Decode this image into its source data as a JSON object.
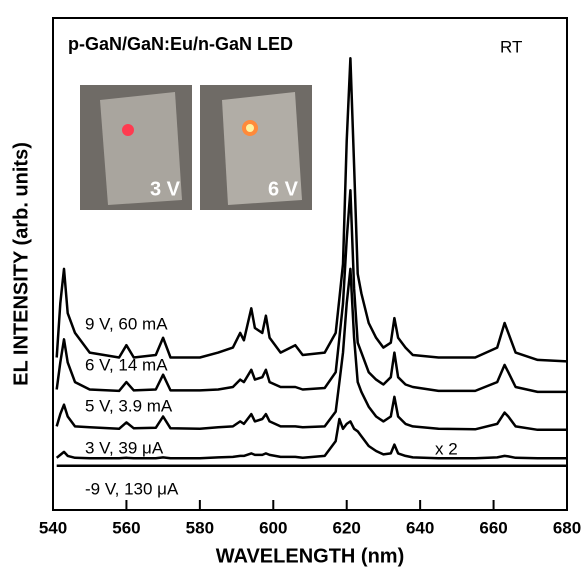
{
  "chart_data": {
    "type": "line",
    "title": "p-GaN/GaN:Eu/n-GaN LED",
    "annotations": [
      "RT",
      "x 2"
    ],
    "inset_labels": [
      "3 V",
      "6 V"
    ],
    "x_label": "WAVELENGTH  (nm)",
    "y_label": "EL INTENSITY  (arb. units)",
    "xlim": [
      540,
      680
    ],
    "xticks": [
      540,
      560,
      580,
      600,
      620,
      640,
      660,
      680
    ],
    "ylim": [
      0,
      100
    ],
    "x": [
      541,
      542,
      543,
      544,
      546,
      550,
      558,
      560,
      562,
      568,
      570,
      572,
      580,
      585,
      589,
      591,
      592,
      594,
      595,
      597,
      598,
      599,
      602,
      606,
      608,
      614,
      617,
      618,
      619,
      620,
      621,
      622,
      623,
      624,
      626,
      628,
      630,
      632,
      633,
      634,
      636,
      638,
      645,
      655,
      661,
      663,
      664,
      666,
      672,
      680
    ],
    "series": [
      {
        "name": "9 V, 60 mA",
        "color": "#000000",
        "values": [
          31,
          42,
          49,
          40,
          36,
          32,
          31,
          33.5,
          31,
          31.5,
          35,
          31,
          31,
          32,
          33,
          36,
          34.5,
          41,
          37,
          36,
          39.5,
          35,
          32,
          33.5,
          31.5,
          32,
          36,
          43,
          50,
          75,
          91.8,
          70,
          48,
          44,
          38,
          35,
          33,
          34,
          39,
          35,
          33,
          31.5,
          31,
          31,
          33,
          38,
          36,
          32,
          30.5,
          30.2
        ]
      },
      {
        "name": "6 V, 14 mA",
        "color": "#000000",
        "values": [
          24.5,
          30,
          34.7,
          30,
          26,
          24.5,
          24.2,
          26,
          24.3,
          24.5,
          27.5,
          24.3,
          24.3,
          24.5,
          25,
          26.5,
          26,
          28.5,
          26.5,
          27,
          28.5,
          26,
          25,
          25,
          24.5,
          24.8,
          28,
          35,
          42,
          55,
          65,
          45,
          34,
          32,
          28,
          26.5,
          25.5,
          27,
          32,
          27,
          25.5,
          25,
          24.2,
          24.2,
          26,
          29.5,
          28,
          25,
          24,
          24
        ]
      },
      {
        "name": "5 V, 3.9 mA",
        "color": "#000000",
        "values": [
          17,
          19.5,
          21.4,
          19,
          17,
          16.8,
          16.5,
          17.8,
          16.6,
          16.7,
          19,
          16.6,
          16.5,
          16.8,
          17,
          18,
          17.5,
          19.5,
          18,
          18.5,
          19.5,
          18,
          17,
          17,
          16.8,
          17,
          20,
          26,
          32,
          42,
          49,
          35,
          26,
          24,
          21,
          19,
          18,
          19,
          23,
          19,
          17.5,
          17,
          16.5,
          16.4,
          17.5,
          19.8,
          19,
          17,
          16.3,
          16.3
        ]
      },
      {
        "name": "3 V, 39 μA",
        "color": "#000000",
        "values": [
          10.6,
          11.2,
          11.8,
          11,
          10.6,
          10.5,
          10.5,
          10.6,
          10.5,
          10.5,
          10.7,
          10.5,
          10.5,
          10.7,
          10.8,
          11,
          11,
          11.5,
          11.2,
          11.2,
          11.5,
          11.2,
          10.8,
          10.8,
          10.6,
          11,
          14,
          18.5,
          16.5,
          17.5,
          18,
          16.5,
          16,
          15,
          13,
          12,
          11.3,
          11.5,
          13.3,
          11.5,
          11,
          10.7,
          10.5,
          10.5,
          10.7,
          11,
          10.9,
          10.6,
          10.5,
          10.5
        ]
      },
      {
        "name": "-9 V, 130 μA",
        "color": "#000000",
        "values": [
          9,
          9,
          9,
          9,
          9,
          9,
          9,
          9,
          9,
          9,
          9,
          9,
          9,
          9,
          9,
          9,
          9,
          9,
          9,
          9,
          9,
          9,
          9,
          9,
          9,
          9,
          9,
          9,
          9,
          9,
          9,
          9,
          9,
          9,
          9,
          9,
          9,
          9,
          9,
          9,
          9,
          9,
          9,
          9,
          9,
          9,
          9,
          9,
          9,
          9
        ]
      }
    ]
  }
}
